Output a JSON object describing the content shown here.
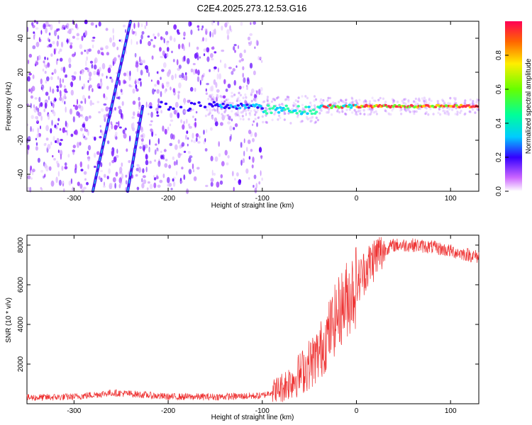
{
  "title": "C2E4.2025.273.12.53.G16",
  "chart_data": [
    {
      "type": "heatmap",
      "name": "spectrogram",
      "xlabel": "Height of straight line (km)",
      "ylabel": "Frequency (Hz)",
      "xlim": [
        -350,
        130
      ],
      "ylim": [
        -50,
        50
      ],
      "x_ticks": [
        -300,
        -200,
        -100,
        0,
        100
      ],
      "y_ticks": [
        -40,
        -20,
        0,
        20,
        40
      ],
      "noise_region_x": [
        -350,
        -100
      ],
      "tone_center_hz": 0,
      "streaks": [
        {
          "x0": -280,
          "y0": -50,
          "x1": -240,
          "y1": 50
        },
        {
          "x0": -243,
          "y0": -50,
          "x1": -227,
          "y1": 0
        }
      ],
      "colorbar": {
        "label": "Normalized spectral amplitude",
        "range": [
          0,
          1
        ],
        "ticks": [
          0.0,
          0.2,
          0.4,
          0.6,
          0.8
        ],
        "tick_labels": [
          "0.0",
          "0.2",
          "0.4",
          "0.6",
          "0.8"
        ]
      }
    },
    {
      "type": "line",
      "name": "snr",
      "xlabel": "Height of straight line (km)",
      "ylabel": "SNR (10 * v/v)",
      "xlim": [
        -350,
        130
      ],
      "ylim": [
        0,
        8500
      ],
      "x_ticks": [
        -300,
        -200,
        -100,
        0,
        100
      ],
      "y_ticks": [
        2000,
        4000,
        6000,
        8000
      ],
      "color": "#ee3333",
      "series_shape": {
        "x": [
          -350,
          -300,
          -260,
          -240,
          -200,
          -150,
          -100,
          -80,
          -60,
          -40,
          -30,
          -20,
          -10,
          0,
          10,
          20,
          30,
          40,
          60,
          80,
          100,
          120,
          130
        ],
        "y": [
          300,
          350,
          550,
          500,
          350,
          350,
          400,
          800,
          1500,
          2500,
          3500,
          4500,
          5300,
          6000,
          6800,
          7400,
          7800,
          8000,
          8000,
          7900,
          7700,
          7500,
          7400
        ]
      }
    }
  ]
}
